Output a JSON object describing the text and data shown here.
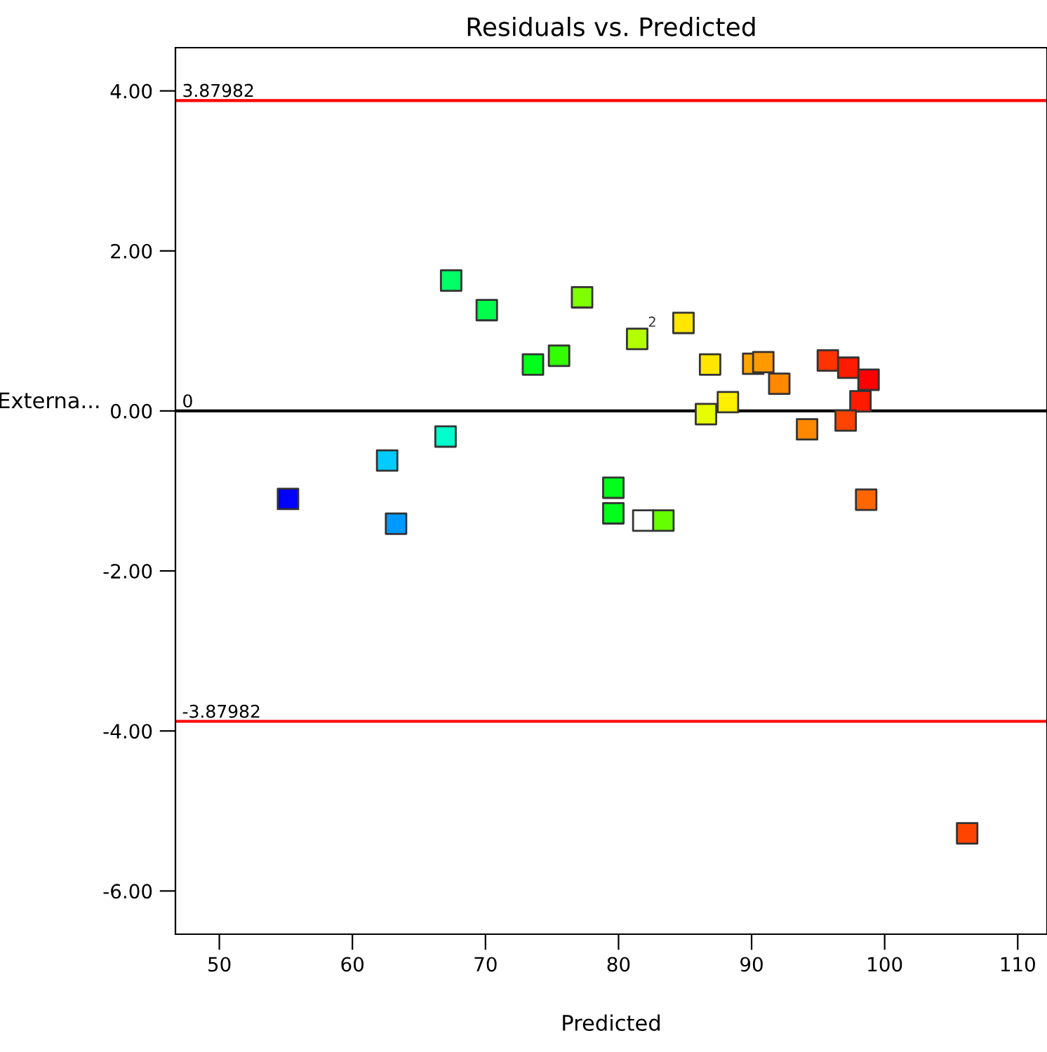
{
  "chart_data": {
    "type": "scatter",
    "title": "Residuals vs. Predicted",
    "xlabel": "Predicted",
    "ylabel": "Externa...",
    "x": [
      67.42,
      70.1,
      77.26,
      73.57,
      75.53,
      67.0,
      62.61,
      55.16,
      63.28,
      79.61,
      79.61,
      81.4,
      84.88,
      86.88,
      90.12,
      90.88,
      92.08,
      88.22,
      86.57,
      95.73,
      97.27,
      98.79,
      98.18,
      97.07,
      94.17,
      98.61,
      81.86,
      83.37,
      106.2
    ],
    "values": [
      1.63,
      1.26,
      1.42,
      0.58,
      0.69,
      -0.32,
      -0.62,
      -1.1,
      -1.41,
      -0.96,
      -1.28,
      0.9,
      1.1,
      0.58,
      0.59,
      0.61,
      0.34,
      0.11,
      -0.04,
      0.63,
      0.54,
      0.39,
      0.12,
      -0.12,
      -0.23,
      -1.11,
      -1.37,
      -1.37,
      -5.28
    ],
    "colors": [
      "#00ff66",
      "#00ff4d",
      "#80ff00",
      "#00ff1a",
      "#33ff00",
      "#00ffcc",
      "#00ccff",
      "#0000ff",
      "#0099ff",
      "#00ff1a",
      "#00ff1a",
      "#b3ff00",
      "#ffe600",
      "#ffe600",
      "#ffa500",
      "#ff9900",
      "#ff8800",
      "#ffee00",
      "#e6ff00",
      "#ff3300",
      "#ff1a00",
      "#ff0000",
      "#ff1a00",
      "#ff4400",
      "#ff8800",
      "#ff6600",
      "#ffffff",
      "#66ff00",
      "#ff4400"
    ],
    "marker": "square",
    "xlim": [
      46.7,
      112.2
    ],
    "ylim": [
      -6.54,
      4.54
    ],
    "xticks": [
      50,
      60,
      70,
      80,
      90,
      100,
      110
    ],
    "yticks": [
      {
        "value": 4,
        "label": "4.00"
      },
      {
        "value": 2,
        "label": "2.00"
      },
      {
        "value": 0,
        "label": "0.00"
      },
      {
        "value": -2,
        "label": "-2.00"
      },
      {
        "value": -4,
        "label": "-4.00"
      },
      {
        "value": -6,
        "label": "-6.00"
      }
    ],
    "ref_lines": [
      {
        "axis": "y",
        "value": 3.87982,
        "label": "3.87982",
        "color": "#ff0000"
      },
      {
        "axis": "y",
        "value": 0,
        "label": "0",
        "color": "#000000"
      },
      {
        "axis": "y",
        "value": -3.87982,
        "label": "-3.87982",
        "color": "#ff0000"
      }
    ],
    "annotations": [
      {
        "text": "2",
        "x": 84.88,
        "y": 1.1
      }
    ],
    "grid": false
  }
}
